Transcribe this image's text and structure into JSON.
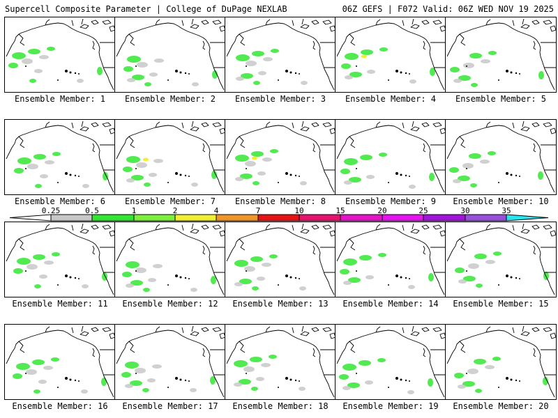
{
  "header": {
    "title": "Supercell Composite Parameter | College of DuPage NEXLAB",
    "run_info": "06Z GEFS | F072 Valid: 06Z WED NOV 19 2025"
  },
  "member_label_prefix": "Ensemble Member: ",
  "members": [
    {
      "label": "Ensemble Member: 1",
      "intensity": 2
    },
    {
      "label": "Ensemble Member: 2",
      "intensity": 2
    },
    {
      "label": "Ensemble Member: 3",
      "intensity": 2
    },
    {
      "label": "Ensemble Member: 4",
      "intensity": 3
    },
    {
      "label": "Ensemble Member: 5",
      "intensity": 2
    },
    {
      "label": "Ensemble Member: 6",
      "intensity": 2
    },
    {
      "label": "Ensemble Member: 7",
      "intensity": 3
    },
    {
      "label": "Ensemble Member: 8",
      "intensity": 3
    },
    {
      "label": "Ensemble Member: 9",
      "intensity": 2
    },
    {
      "label": "Ensemble Member: 10",
      "intensity": 1
    },
    {
      "label": "Ensemble Member: 11",
      "intensity": 2
    },
    {
      "label": "Ensemble Member: 12",
      "intensity": 1
    },
    {
      "label": "Ensemble Member: 13",
      "intensity": 2
    },
    {
      "label": "Ensemble Member: 14",
      "intensity": 2
    },
    {
      "label": "Ensemble Member: 15",
      "intensity": 2
    },
    {
      "label": "Ensemble Member: 16",
      "intensity": 2
    },
    {
      "label": "Ensemble Member: 17",
      "intensity": 2
    },
    {
      "label": "Ensemble Member: 18",
      "intensity": 1
    },
    {
      "label": "Ensemble Member: 19",
      "intensity": 2
    },
    {
      "label": "Ensemble Member: 20",
      "intensity": 2
    }
  ],
  "colorbar": {
    "ticks": [
      "0.25",
      "0.5",
      "1",
      "2",
      "4",
      "7",
      "10",
      "15",
      "20",
      "25",
      "30",
      "35"
    ],
    "colors": [
      "#c8c8c8",
      "#32e632",
      "#7cf03c",
      "#f0f032",
      "#f09628",
      "#e61414",
      "#e6146e",
      "#e614c8",
      "#e614f0",
      "#a014dc",
      "#9650dc",
      "#28e6f0"
    ]
  },
  "colors": {
    "coast": "#000000",
    "light": "#c8c8c8",
    "green": "#32e632",
    "lime": "#7cf03c",
    "yellow": "#f0f032"
  }
}
